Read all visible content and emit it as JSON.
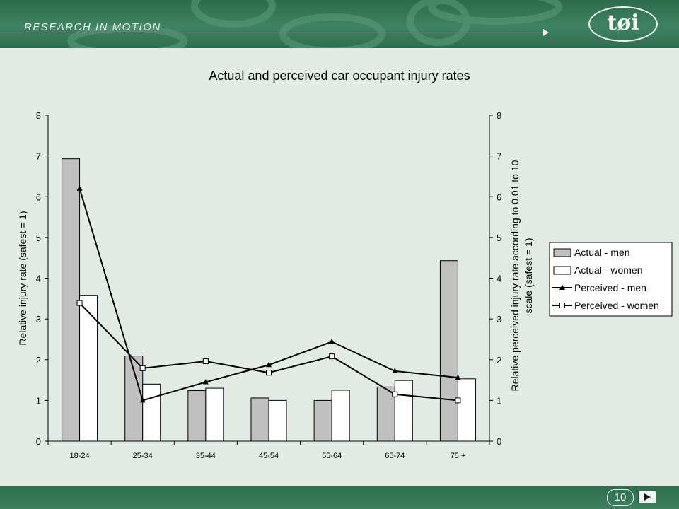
{
  "header": {
    "brand_text": "RESEARCH IN MOTION",
    "logo_text": "tøi",
    "colors": {
      "banner": "#2f6e4f",
      "background": "#e3ece4"
    }
  },
  "footer": {
    "page_number": "10"
  },
  "chart_data": {
    "type": "bar",
    "title": "Actual and perceived car occupant injury rates",
    "categories": [
      "18-24",
      "25-34",
      "35-44",
      "45-54",
      "55-64",
      "65-74",
      "75 +"
    ],
    "ylabel": "Relative injury rate (safest = 1)",
    "y2label_lines": [
      "Relative perceived injury rate according to 0.01 to 10",
      "scale (safest = 1)"
    ],
    "ylim": [
      0,
      8
    ],
    "y2lim": [
      0,
      8
    ],
    "yticks": [
      0,
      1,
      2,
      3,
      4,
      5,
      6,
      7,
      8
    ],
    "grid": false,
    "legend_position": "right",
    "series": [
      {
        "name": "Actual - men",
        "kind": "bar",
        "axis": "left",
        "color": "#c0c0c0",
        "values": [
          6.93,
          2.09,
          1.24,
          1.06,
          1.0,
          1.33,
          4.43
        ]
      },
      {
        "name": "Actual - women",
        "kind": "bar",
        "axis": "left",
        "color": "#ffffff",
        "values": [
          3.58,
          1.4,
          1.3,
          1.0,
          1.25,
          1.49,
          1.53
        ]
      },
      {
        "name": "Perceived - men",
        "kind": "line",
        "axis": "right",
        "marker": "triangle",
        "color": "#000000",
        "values": [
          6.2,
          1.0,
          1.45,
          1.87,
          2.44,
          1.72,
          1.56
        ]
      },
      {
        "name": "Perceived - women",
        "kind": "line",
        "axis": "right",
        "marker": "square",
        "color": "#000000",
        "values": [
          3.39,
          1.79,
          1.96,
          1.68,
          2.08,
          1.15,
          1.0
        ]
      }
    ]
  }
}
